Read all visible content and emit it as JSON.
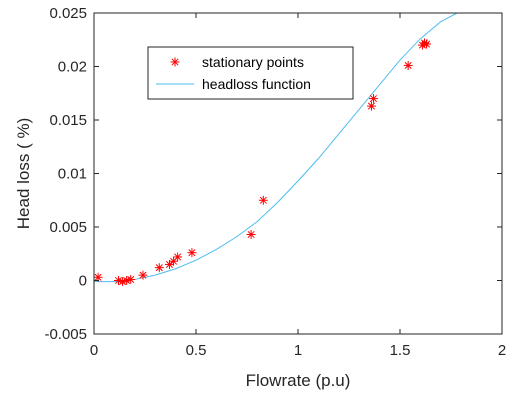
{
  "chart_data": {
    "type": "scatter",
    "xlabel": "Flowrate (p.u)",
    "ylabel": "Head loss ( %)",
    "xlim": [
      0,
      2
    ],
    "ylim": [
      -0.005,
      0.025
    ],
    "xticks": [
      0,
      0.5,
      1,
      1.5,
      2
    ],
    "yticks": [
      -0.005,
      0,
      0.005,
      0.01,
      0.015,
      0.02,
      0.025
    ],
    "xtick_labels": [
      "0",
      "0.5",
      "1",
      "1.5",
      "2"
    ],
    "ytick_labels": [
      "-0.005",
      "0",
      "0.005",
      "0.01",
      "0.015",
      "0.02",
      "0.025"
    ],
    "grid": false,
    "legend_position": "upper-left",
    "series": [
      {
        "name": "stationary points",
        "kind": "marker",
        "marker": "asterisk",
        "color": "#ff0000",
        "x": [
          0.02,
          0.12,
          0.14,
          0.16,
          0.18,
          0.24,
          0.32,
          0.37,
          0.39,
          0.41,
          0.48,
          0.77,
          0.83,
          1.36,
          1.37,
          1.54,
          1.61,
          1.62,
          1.63
        ],
        "y": [
          0.0003,
          0.0,
          -0.0001,
          0.0,
          0.0001,
          0.0005,
          0.0012,
          0.0015,
          0.0018,
          0.0022,
          0.0026,
          0.0043,
          0.0075,
          0.0163,
          0.017,
          0.0201,
          0.022,
          0.0222,
          0.0221
        ]
      },
      {
        "name": "headloss function",
        "kind": "line",
        "color": "#4dbeee",
        "x": [
          0,
          0.1,
          0.2,
          0.3,
          0.4,
          0.5,
          0.6,
          0.7,
          0.8,
          0.9,
          1.0,
          1.1,
          1.2,
          1.3,
          1.4,
          1.5,
          1.6,
          1.7,
          1.78
        ],
        "y": [
          -0.0001,
          -0.0001,
          0.0001,
          0.0005,
          0.0011,
          0.0019,
          0.0029,
          0.0041,
          0.0055,
          0.0073,
          0.0093,
          0.0114,
          0.0137,
          0.016,
          0.0183,
          0.0206,
          0.0226,
          0.0242,
          0.025
        ]
      }
    ]
  }
}
